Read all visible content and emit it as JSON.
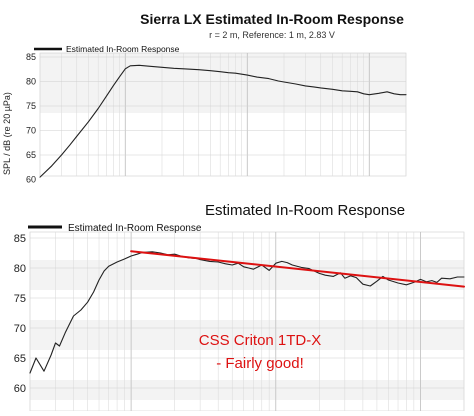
{
  "chart_data": [
    {
      "type": "line",
      "title": "Sierra LX Estimated In-Room Response",
      "subtitle": "r = 2 m,  Reference: 1 m, 2.83 V",
      "ylabel": "SPL / dB (re 20 µPa)",
      "xscale": "log",
      "xlim": [
        20,
        20000
      ],
      "ylim": [
        60,
        86
      ],
      "y_ticks": [
        60,
        65,
        70,
        75,
        80,
        85
      ],
      "grid": true,
      "legend": "top-left",
      "legend_entries": [
        "Estimated In-Room Response"
      ],
      "series": [
        {
          "name": "Estimated In-Room Response",
          "color": "#222222",
          "x": [
            20,
            25,
            30,
            35,
            40,
            50,
            60,
            70,
            80,
            90,
            100,
            110,
            130,
            160,
            200,
            250,
            300,
            400,
            500,
            600,
            700,
            800,
            1000,
            1200,
            1500,
            1800,
            2000,
            2500,
            3000,
            3500,
            4000,
            5000,
            6000,
            7000,
            8000,
            9000,
            10000,
            12000,
            14000,
            16000,
            18000,
            20000
          ],
          "y": [
            60.5,
            62.8,
            65.0,
            67.0,
            68.8,
            71.8,
            74.5,
            77.0,
            79.2,
            81.0,
            82.6,
            83.2,
            83.3,
            83.1,
            82.9,
            82.7,
            82.6,
            82.4,
            82.2,
            82.0,
            81.8,
            81.7,
            81.3,
            80.9,
            80.6,
            80.1,
            79.9,
            79.5,
            79.1,
            78.9,
            78.7,
            78.4,
            78.1,
            78.0,
            77.9,
            77.5,
            77.3,
            77.6,
            77.9,
            77.5,
            77.3,
            77.3
          ]
        }
      ]
    },
    {
      "type": "line",
      "title": "Estimated In-Room Response",
      "xscale": "log",
      "xlim": [
        20,
        20000
      ],
      "ylim": [
        60,
        86
      ],
      "y_ticks": [
        60,
        65,
        70,
        75,
        80,
        85
      ],
      "grid": true,
      "legend": "top-left",
      "legend_entries": [
        "Estimated In-Room Response"
      ],
      "annotation": [
        "CSS Criton 1TD-X",
        "- Fairly good!"
      ],
      "series": [
        {
          "name": "Estimated In-Room Response",
          "color": "#222222",
          "x": [
            20,
            22,
            25,
            28,
            30,
            32,
            35,
            40,
            45,
            50,
            55,
            60,
            65,
            70,
            80,
            90,
            100,
            110,
            120,
            140,
            160,
            180,
            200,
            220,
            250,
            280,
            300,
            350,
            400,
            450,
            500,
            550,
            600,
            650,
            700,
            800,
            900,
            1000,
            1100,
            1200,
            1300,
            1500,
            1700,
            2000,
            2200,
            2500,
            2800,
            3000,
            3300,
            3600,
            4000,
            4500,
            5000,
            5500,
            6000,
            7000,
            8000,
            9000,
            10000,
            11000,
            12000,
            13000,
            14000,
            16000,
            18000,
            20000
          ],
          "y": [
            62.5,
            65.0,
            62.8,
            65.5,
            67.5,
            67.0,
            69.2,
            72.0,
            73.0,
            74.3,
            76.0,
            78.0,
            79.5,
            80.3,
            81.0,
            81.5,
            82.0,
            82.3,
            82.6,
            82.7,
            82.5,
            82.2,
            82.3,
            82.0,
            81.7,
            81.6,
            81.4,
            81.1,
            81.0,
            80.7,
            80.5,
            80.8,
            80.2,
            80.0,
            79.8,
            80.5,
            79.6,
            80.8,
            81.1,
            80.9,
            80.5,
            80.1,
            79.9,
            79.1,
            78.8,
            78.6,
            79.2,
            78.3,
            78.7,
            78.4,
            77.3,
            77.0,
            77.8,
            78.6,
            78.0,
            77.5,
            77.2,
            77.6,
            78.1,
            77.7,
            77.9,
            77.6,
            78.3,
            78.2,
            78.5,
            78.5
          ]
        },
        {
          "name": "",
          "color": "#dd1111",
          "x": [
            100,
            20000
          ],
          "y": [
            82.8,
            76.9
          ]
        }
      ]
    }
  ]
}
